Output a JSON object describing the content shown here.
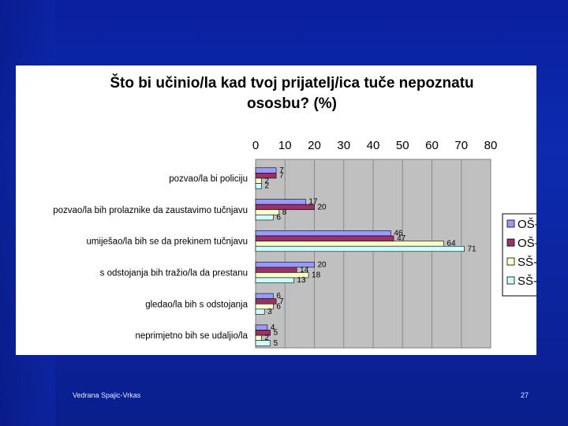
{
  "slide": {
    "author": "Vedrana Spajic-Vrkas",
    "page_number": "27"
  },
  "chart_data": {
    "type": "bar",
    "orientation": "horizontal",
    "title": "Što bi učinio/la kad tvoj prijatelj/ica tuče nepoznatu ososbu? (%)",
    "title_lines": [
      "Što bi učinio/la kad tvoj prijatelj/ica tuče nepoznatu",
      "ososbu? (%)"
    ],
    "xlim": [
      0,
      80
    ],
    "x_ticks": [
      "0",
      "10",
      "20",
      "30",
      "40",
      "50",
      "60",
      "70",
      "80"
    ],
    "x_axis_position": "top",
    "grid": true,
    "legend_position": "right",
    "categories": [
      "pozvao/la bi policiju",
      "pozvao/la bih prolaznike da zaustavimo tučnjavu",
      "umiješao/la bih se da prekinem tučnjavu",
      "s odstojanja bih tražio/la da prestanu",
      "gledao/la bih s odstojanja",
      "neprimjetno bih se udaljio/la"
    ],
    "series": [
      {
        "name": "OŠ-P",
        "color": "#9999ff",
        "values": [
          7,
          17,
          46,
          20,
          6,
          4
        ]
      },
      {
        "name": "OŠ-Z",
        "color": "#993366",
        "values": [
          7,
          20,
          47,
          14,
          7,
          5
        ]
      },
      {
        "name": "SŠ-P",
        "color": "#ffffcc",
        "values": [
          2,
          8,
          64,
          18,
          6,
          2
        ]
      },
      {
        "name": "SŠ-Z",
        "color": "#ccffff",
        "values": [
          2,
          6,
          71,
          13,
          3,
          5
        ]
      }
    ]
  }
}
